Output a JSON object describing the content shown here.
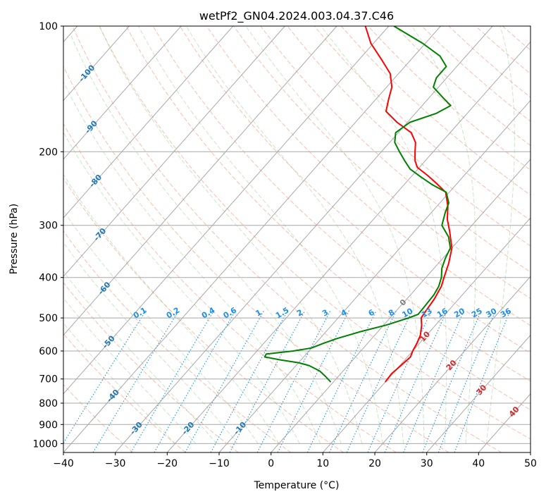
{
  "chart_data": {
    "type": "line",
    "subtype": "skew-t log-p diagram",
    "title": "wetPf2_GN04.2024.003.04.37.C46",
    "xlabel": "Temperature (°C)",
    "ylabel": "Pressure (hPa)",
    "xlim": [
      -40,
      50
    ],
    "ylim": [
      1050,
      100
    ],
    "yscale": "log",
    "skew_note": "isotherms slanted",
    "grid": true,
    "x_ticks": [
      -40,
      -30,
      -20,
      -10,
      0,
      10,
      20,
      30,
      40,
      50
    ],
    "x_tick_labels": [
      "−40",
      "−30",
      "−20",
      "−10",
      "0",
      "10",
      "20",
      "30",
      "40",
      "50"
    ],
    "y_ticks": [
      1000,
      900,
      800,
      700,
      600,
      500,
      400,
      300,
      200,
      100
    ],
    "y_tick_labels": [
      "1000",
      "900",
      "800",
      "700",
      "600",
      "500",
      "400",
      "300",
      "200",
      "100"
    ],
    "isotherm_labels": [
      "-100",
      "-90",
      "-80",
      "-70",
      "-60",
      "-50",
      "-40",
      "-30",
      "-20",
      "-10",
      "0",
      "10",
      "20",
      "30",
      "40"
    ],
    "mixing_ratio_labels": [
      "0.1",
      "0.2",
      "0.4",
      "0.6",
      "1",
      "1.5",
      "2",
      "3",
      "4",
      "6",
      "8",
      "10",
      "13",
      "16",
      "20",
      "25",
      "30",
      "36"
    ],
    "series": [
      {
        "role": "temperature",
        "color": "#ff0000",
        "points": [
          {
            "p": 712,
            "t": 10.0
          },
          {
            "p": 680,
            "t": 9.8
          },
          {
            "p": 650,
            "t": 10.2
          },
          {
            "p": 620,
            "t": 10.6
          },
          {
            "p": 600,
            "t": 10.0
          },
          {
            "p": 575,
            "t": 9.5
          },
          {
            "p": 550,
            "t": 8.8
          },
          {
            "p": 520,
            "t": 7.3
          },
          {
            "p": 500,
            "t": 6.0
          },
          {
            "p": 480,
            "t": 5.7
          },
          {
            "p": 450,
            "t": 5.3
          },
          {
            "p": 420,
            "t": 4.5
          },
          {
            "p": 400,
            "t": 3.5
          },
          {
            "p": 370,
            "t": 2.0
          },
          {
            "p": 340,
            "t": 0.0
          },
          {
            "p": 310,
            "t": -3.3
          },
          {
            "p": 290,
            "t": -5.8
          },
          {
            "p": 270,
            "t": -7.9
          },
          {
            "p": 250,
            "t": -10.7
          },
          {
            "p": 238,
            "t": -14.0
          },
          {
            "p": 228,
            "t": -17.0
          },
          {
            "p": 218,
            "t": -20.4
          },
          {
            "p": 210,
            "t": -22.0
          },
          {
            "p": 200,
            "t": -23.5
          },
          {
            "p": 190,
            "t": -25.0
          },
          {
            "p": 180,
            "t": -27.5
          },
          {
            "p": 170,
            "t": -32.0
          },
          {
            "p": 160,
            "t": -36.0
          },
          {
            "p": 150,
            "t": -37.5
          },
          {
            "p": 140,
            "t": -39.0
          },
          {
            "p": 130,
            "t": -41.6
          },
          {
            "p": 120,
            "t": -45.8
          },
          {
            "p": 110,
            "t": -50.5
          },
          {
            "p": 100,
            "t": -54.5
          }
        ]
      },
      {
        "role": "dewpoint",
        "color": "#008000",
        "points": [
          {
            "p": 712,
            "t": -0.5
          },
          {
            "p": 690,
            "t": -2.5
          },
          {
            "p": 670,
            "t": -4.5
          },
          {
            "p": 650,
            "t": -7.5
          },
          {
            "p": 640,
            "t": -10.0
          },
          {
            "p": 630,
            "t": -14.0
          },
          {
            "p": 620,
            "t": -17.5
          },
          {
            "p": 610,
            "t": -17.7
          },
          {
            "p": 600,
            "t": -13.0
          },
          {
            "p": 590,
            "t": -10.0
          },
          {
            "p": 575,
            "t": -8.5
          },
          {
            "p": 560,
            "t": -6.7
          },
          {
            "p": 540,
            "t": -3.5
          },
          {
            "p": 520,
            "t": 0.5
          },
          {
            "p": 500,
            "t": 3.6
          },
          {
            "p": 490,
            "t": 4.8
          },
          {
            "p": 470,
            "t": 4.7
          },
          {
            "p": 440,
            "t": 4.5
          },
          {
            "p": 420,
            "t": 4.0
          },
          {
            "p": 400,
            "t": 3.0
          },
          {
            "p": 380,
            "t": 1.5
          },
          {
            "p": 360,
            "t": 0.5
          },
          {
            "p": 340,
            "t": -0.3
          },
          {
            "p": 320,
            "t": -2.5
          },
          {
            "p": 300,
            "t": -5.8
          },
          {
            "p": 280,
            "t": -7.3
          },
          {
            "p": 265,
            "t": -8.3
          },
          {
            "p": 250,
            "t": -10.6
          },
          {
            "p": 240,
            "t": -14.5
          },
          {
            "p": 230,
            "t": -18.0
          },
          {
            "p": 220,
            "t": -21.5
          },
          {
            "p": 210,
            "t": -24.0
          },
          {
            "p": 200,
            "t": -26.5
          },
          {
            "p": 190,
            "t": -29.0
          },
          {
            "p": 180,
            "t": -30.5
          },
          {
            "p": 170,
            "t": -29.5
          },
          {
            "p": 162,
            "t": -26.0
          },
          {
            "p": 155,
            "t": -24.5
          },
          {
            "p": 148,
            "t": -27.5
          },
          {
            "p": 140,
            "t": -31.0
          },
          {
            "p": 133,
            "t": -32.0
          },
          {
            "p": 125,
            "t": -32.0
          },
          {
            "p": 118,
            "t": -35.0
          },
          {
            "p": 110,
            "t": -40.5
          },
          {
            "p": 104,
            "t": -45.5
          },
          {
            "p": 100,
            "t": -49.0
          }
        ]
      }
    ]
  }
}
